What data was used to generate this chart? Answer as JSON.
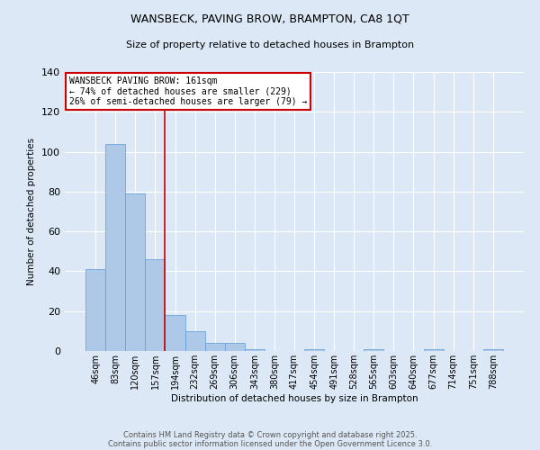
{
  "title": "WANSBECK, PAVING BROW, BRAMPTON, CA8 1QT",
  "subtitle": "Size of property relative to detached houses in Brampton",
  "xlabel": "Distribution of detached houses by size in Brampton",
  "ylabel": "Number of detached properties",
  "categories": [
    "46sqm",
    "83sqm",
    "120sqm",
    "157sqm",
    "194sqm",
    "232sqm",
    "269sqm",
    "306sqm",
    "343sqm",
    "380sqm",
    "417sqm",
    "454sqm",
    "491sqm",
    "528sqm",
    "565sqm",
    "603sqm",
    "640sqm",
    "677sqm",
    "714sqm",
    "751sqm",
    "788sqm"
  ],
  "values": [
    41,
    104,
    79,
    46,
    18,
    10,
    4,
    4,
    1,
    0,
    0,
    1,
    0,
    0,
    1,
    0,
    0,
    1,
    0,
    0,
    1
  ],
  "bar_color": "#aec9e8",
  "bar_edge_color": "#5b9bd5",
  "red_line_bin_index": 3,
  "annotation_line1": "WANSBECK PAVING BROW: 161sqm",
  "annotation_line2": "← 74% of detached houses are smaller (229)",
  "annotation_line3": "26% of semi-detached houses are larger (79) →",
  "annotation_box_color": "#ffffff",
  "annotation_box_edge_color": "#cc0000",
  "red_line_color": "#cc0000",
  "ylim": [
    0,
    140
  ],
  "yticks": [
    0,
    20,
    40,
    60,
    80,
    100,
    120,
    140
  ],
  "background_color": "#dce8f5",
  "grid_color": "#ffffff",
  "footer1": "Contains HM Land Registry data © Crown copyright and database right 2025.",
  "footer2": "Contains public sector information licensed under the Open Government Licence 3.0."
}
